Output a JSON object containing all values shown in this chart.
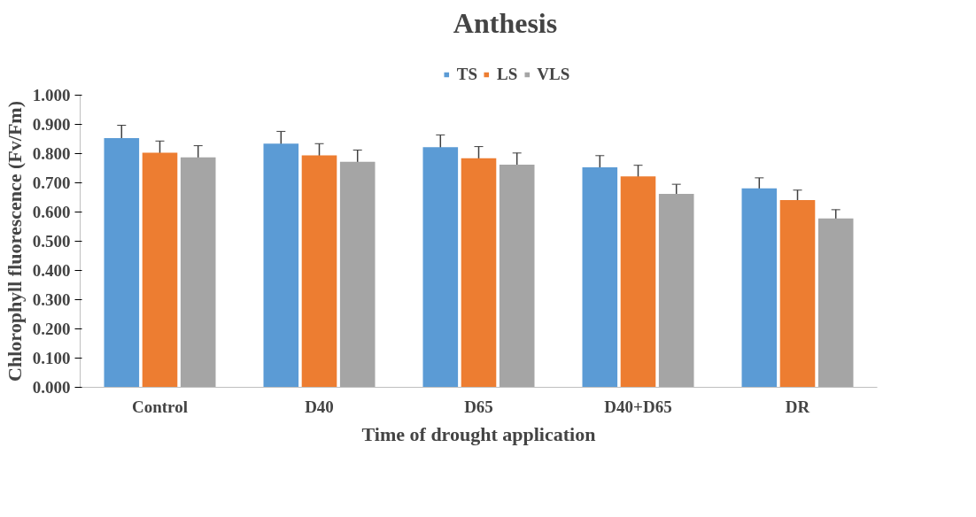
{
  "chart_data": {
    "type": "bar",
    "title": "Anthesis",
    "xlabel": "Time of drought application",
    "ylabel": "Chlorophyll fluorescence (Fv/Fm)",
    "categories": [
      "Control",
      "D40",
      "D65",
      "D40+D65",
      "DR"
    ],
    "series": [
      {
        "name": "TS",
        "color": "#5b9bd5",
        "values": [
          0.853,
          0.834,
          0.822,
          0.753,
          0.681
        ],
        "errors": [
          0.044,
          0.042,
          0.042,
          0.04,
          0.036
        ]
      },
      {
        "name": "LS",
        "color": "#ed7d31",
        "values": [
          0.803,
          0.794,
          0.784,
          0.722,
          0.641
        ],
        "errors": [
          0.04,
          0.04,
          0.04,
          0.038,
          0.034
        ]
      },
      {
        "name": "VLS",
        "color": "#a5a5a5",
        "values": [
          0.787,
          0.772,
          0.762,
          0.662,
          0.578
        ],
        "errors": [
          0.04,
          0.04,
          0.04,
          0.033,
          0.03
        ]
      }
    ],
    "ylim": [
      0,
      1
    ],
    "yticks": [
      {
        "value": 0,
        "label": "0.000"
      },
      {
        "value": 0.1,
        "label": "0.100"
      },
      {
        "value": 0.2,
        "label": "0.200"
      },
      {
        "value": 0.3,
        "label": "0.300"
      },
      {
        "value": 0.4,
        "label": "0.400"
      },
      {
        "value": 0.5,
        "label": "0.500"
      },
      {
        "value": 0.6,
        "label": "0.600"
      },
      {
        "value": 0.7,
        "label": "0.700"
      },
      {
        "value": 0.8,
        "label": "0.800"
      },
      {
        "value": 0.9,
        "label": "0.900"
      },
      {
        "value": 1.0,
        "label": "1.000"
      }
    ],
    "grid": false,
    "legend": "top"
  }
}
